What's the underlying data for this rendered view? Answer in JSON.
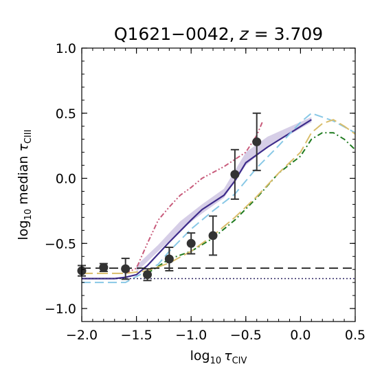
{
  "chart_data": {
    "type": "line",
    "title": {
      "prefix": "Q1621−0042,",
      "var": "z",
      "suffix": " = 3.709"
    },
    "xlabel": {
      "base": "log",
      "sub": "10",
      "sym": "τ",
      "sub2": "CIV"
    },
    "ylabel": {
      "base": "log",
      "sub": "10",
      "mid": " median ",
      "sym": "τ",
      "sub2": "CIII"
    },
    "xlim": [
      -2.0,
      0.5
    ],
    "ylim": [
      -1.1,
      1.0
    ],
    "xticks": [
      {
        "value": -2.0,
        "label": "−2.0"
      },
      {
        "value": -1.5,
        "label": "−1.5"
      },
      {
        "value": -1.0,
        "label": "−1.0"
      },
      {
        "value": -0.5,
        "label": "−0.5"
      },
      {
        "value": 0.0,
        "label": "0.0"
      },
      {
        "value": 0.5,
        "label": "0.5"
      }
    ],
    "yticks": [
      {
        "value": -1.0,
        "label": "−1.0"
      },
      {
        "value": -0.5,
        "label": "−0.5"
      },
      {
        "value": 0.0,
        "label": "0.0"
      },
      {
        "value": 0.5,
        "label": "0.5"
      },
      {
        "value": 1.0,
        "label": "1.0"
      }
    ],
    "grid": false,
    "points": {
      "color": "#333333",
      "data": [
        {
          "x": -2.0,
          "y": -0.71,
          "err": 0.04
        },
        {
          "x": -1.8,
          "y": -0.685,
          "err": 0.03
        },
        {
          "x": -1.6,
          "y": -0.695,
          "err": 0.08
        },
        {
          "x": -1.4,
          "y": -0.74,
          "err": 0.045
        },
        {
          "x": -1.2,
          "y": -0.62,
          "err": 0.09
        },
        {
          "x": -1.0,
          "y": -0.5,
          "err": 0.08
        },
        {
          "x": -0.8,
          "y": -0.44,
          "err": 0.15
        },
        {
          "x": -0.6,
          "y": 0.03,
          "err": 0.19
        },
        {
          "x": -0.4,
          "y": 0.28,
          "err": 0.22
        }
      ]
    },
    "band": {
      "color": "#cfc5e3",
      "x": [
        -1.5,
        -1.3,
        -1.1,
        -0.9,
        -0.7,
        -0.5,
        -0.3,
        0.1
      ],
      "y_low": [
        -0.72,
        -0.56,
        -0.4,
        -0.27,
        -0.15,
        0.1,
        0.24,
        0.43
      ],
      "y_high": [
        -0.67,
        -0.51,
        -0.33,
        -0.2,
        -0.08,
        0.2,
        0.32,
        0.47
      ]
    },
    "series": [
      {
        "style": "solid",
        "color": "#3d2b8a",
        "x": [
          -2.0,
          -1.8,
          -1.7,
          -1.6,
          -1.5,
          -1.4,
          -1.2,
          -1.0,
          -0.9,
          -0.7,
          -0.6,
          -0.5,
          -0.3,
          0.1
        ],
        "y": [
          -0.77,
          -0.77,
          -0.77,
          -0.76,
          -0.74,
          -0.67,
          -0.49,
          -0.32,
          -0.24,
          -0.13,
          -0.02,
          0.12,
          0.24,
          0.45
        ]
      },
      {
        "style": "dashdotdot",
        "color": "#c85a7a",
        "x": [
          -1.6,
          -1.5,
          -1.4,
          -1.3,
          -1.2,
          -1.1,
          -1.0,
          -0.9,
          -0.7,
          -0.5,
          -0.4,
          -0.35
        ],
        "y": [
          -0.73,
          -0.69,
          -0.5,
          -0.32,
          -0.22,
          -0.13,
          -0.07,
          0.0,
          0.09,
          0.2,
          0.33,
          0.43
        ]
      },
      {
        "style": "dashed",
        "color": "#88c8e6",
        "x": [
          -2.0,
          -1.8,
          -1.6,
          -1.4,
          -1.3,
          -1.2,
          -1.0,
          -0.8,
          -0.6,
          -0.4,
          -0.2,
          0.0,
          0.1,
          0.3,
          0.5
        ],
        "y": [
          -0.8,
          -0.8,
          -0.8,
          -0.71,
          -0.66,
          -0.56,
          -0.39,
          -0.25,
          -0.12,
          0.08,
          0.25,
          0.43,
          0.5,
          0.44,
          0.35
        ]
      },
      {
        "style": "dashdot",
        "color": "#1e7a1e",
        "x": [
          -1.4,
          -1.2,
          -1.0,
          -0.8,
          -0.6,
          -0.4,
          -0.2,
          0.0,
          0.1,
          0.2,
          0.3,
          0.4,
          0.5
        ],
        "y": [
          -0.73,
          -0.62,
          -0.56,
          -0.46,
          -0.32,
          -0.15,
          0.04,
          0.17,
          0.3,
          0.35,
          0.35,
          0.3,
          0.22
        ]
      },
      {
        "style": "longdash",
        "color": "#d9bd6a",
        "x": [
          -2.0,
          -1.8,
          -1.6,
          -1.4,
          -1.2,
          -1.0,
          -0.8,
          -0.6,
          -0.4,
          -0.2,
          0.0,
          0.1,
          0.2,
          0.3,
          0.4,
          0.5
        ],
        "y": [
          -0.73,
          -0.73,
          -0.73,
          -0.71,
          -0.65,
          -0.56,
          -0.44,
          -0.3,
          -0.14,
          0.04,
          0.2,
          0.35,
          0.42,
          0.45,
          0.4,
          0.34
        ]
      },
      {
        "style": "hline-dashed",
        "color": "#000000",
        "x": [
          -2.0,
          0.5
        ],
        "y": [
          -0.69,
          -0.69
        ]
      },
      {
        "style": "hline-dotted",
        "color": "#2a2260",
        "x": [
          -2.0,
          0.5
        ],
        "y": [
          -0.77,
          -0.77
        ]
      }
    ]
  }
}
